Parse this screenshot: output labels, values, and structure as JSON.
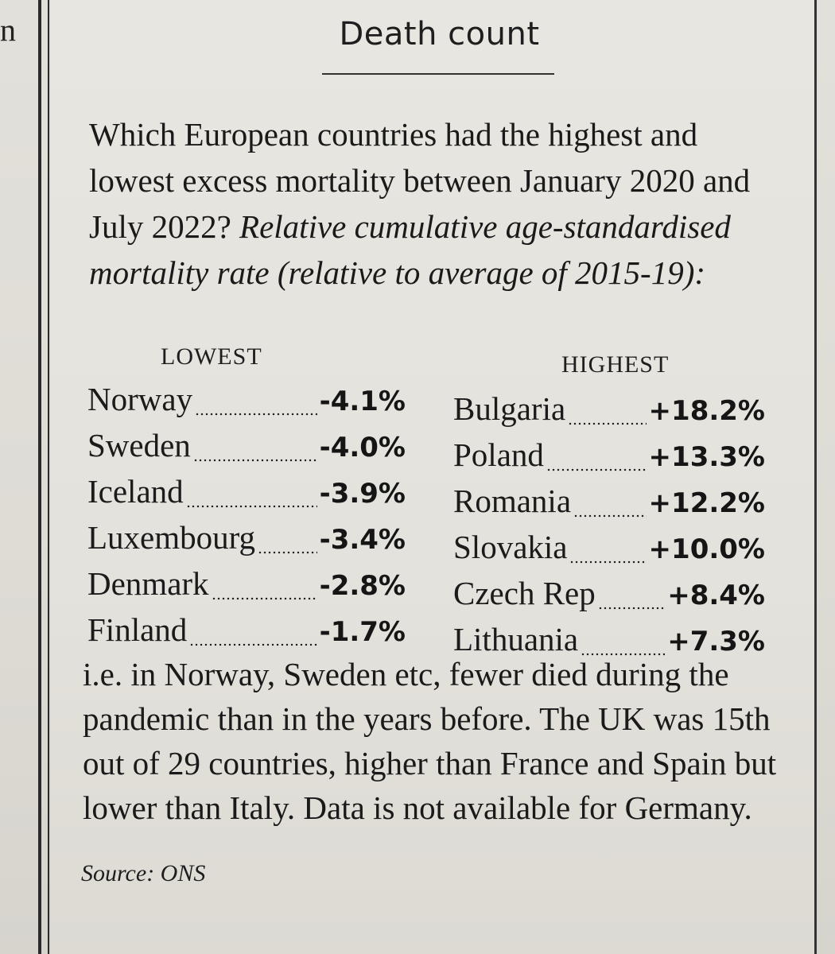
{
  "bleed": {
    "letter": "n"
  },
  "article": {
    "heading": "Death count",
    "intro_question": "Which European countries had the highest and lowest excess mortality between January 2020 and July 2022?",
    "intro_subtitle": "Relative cumulative age-standardised mortality rate (relative to average of 2015-19):",
    "lowest": {
      "label": "LOWEST",
      "rows": [
        {
          "country": "Norway",
          "value": "-4.1%"
        },
        {
          "country": "Sweden",
          "value": "-4.0%"
        },
        {
          "country": "Iceland",
          "value": "-3.9%"
        },
        {
          "country": "Luxembourg",
          "value": "-3.4%"
        },
        {
          "country": "Denmark",
          "value": "-2.8%"
        },
        {
          "country": "Finland",
          "value": "-1.7%"
        }
      ]
    },
    "highest": {
      "label": "HIGHEST",
      "rows": [
        {
          "country": "Bulgaria",
          "value": "+18.2%"
        },
        {
          "country": "Poland",
          "value": "+13.3%"
        },
        {
          "country": "Romania",
          "value": "+12.2%"
        },
        {
          "country": "Slovakia",
          "value": "+10.0%"
        },
        {
          "country": "Czech Rep",
          "value": "+8.4%"
        },
        {
          "country": "Lithuania",
          "value": "+7.3%"
        }
      ]
    },
    "note": "i.e. in Norway, Sweden etc, fewer died during the pandemic than in the years before. The UK was 15th out of 29 countries, higher than France and Spain but lower than Italy. Data is not available for Germany.",
    "source": "Source: ONS"
  }
}
